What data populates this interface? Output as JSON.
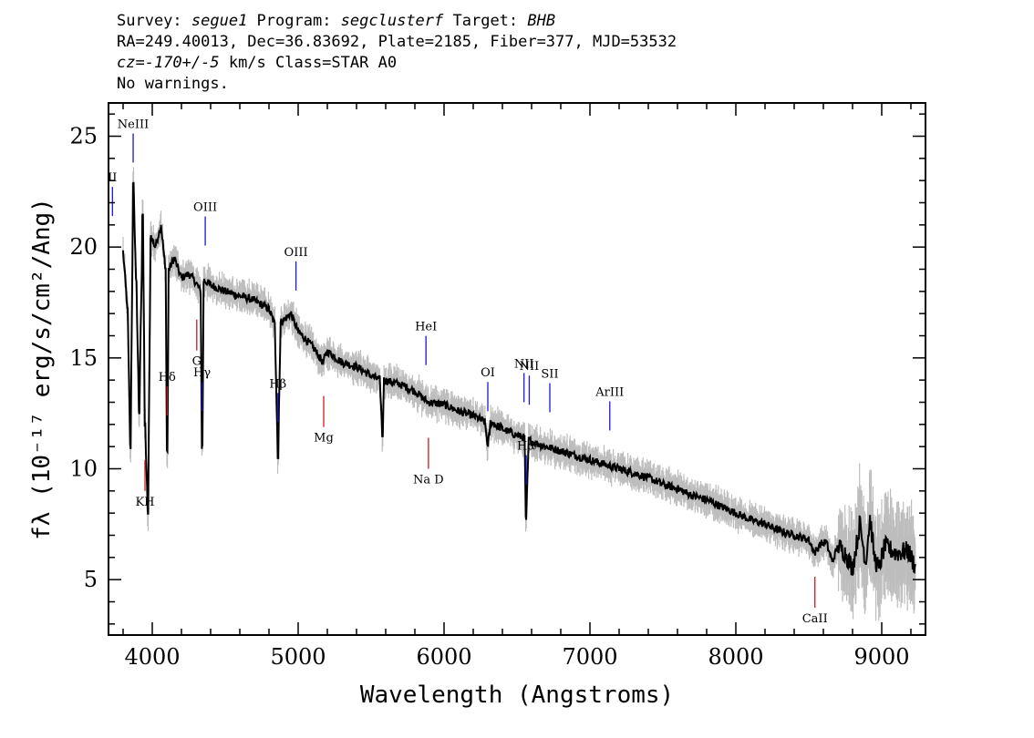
{
  "header": {
    "line1": {
      "survey_label": "Survey: ",
      "survey": "segue1",
      "program_label": " Program: ",
      "program": "segclusterf",
      "target_label": " Target: ",
      "target": "BHB"
    },
    "line2": "RA=249.40013, Dec=36.83692, Plate=2185, Fiber=377, MJD=53532",
    "line3": {
      "cz": "cz=-170+/-5",
      "rest": " km/s Class=STAR A0"
    },
    "line4": "No warnings."
  },
  "chart_data": {
    "type": "line",
    "xlabel": "Wavelength (Angstroms)",
    "ylabel": "fλ (10⁻¹⁷ erg/s/cm²/Ang)",
    "xlim": [
      3700,
      9300
    ],
    "ylim": [
      2.5,
      26.5
    ],
    "x_ticks": [
      4000,
      5000,
      6000,
      7000,
      8000,
      9000
    ],
    "y_ticks": [
      5,
      10,
      15,
      20,
      25
    ],
    "series": [
      {
        "color": "#000000",
        "x": [
          3800,
          3830,
          3850,
          3870,
          3890,
          3910,
          3935,
          3950,
          3970,
          3990,
          4020,
          4060,
          4090,
          4102,
          4115,
          4150,
          4200,
          4250,
          4300,
          4330,
          4341,
          4355,
          4400,
          4500,
          4600,
          4700,
          4800,
          4840,
          4861,
          4880,
          4950,
          5000,
          5100,
          5170,
          5200,
          5300,
          5400,
          5500,
          5560,
          5577,
          5590,
          5700,
          5800,
          5890,
          6000,
          6100,
          6200,
          6280,
          6300,
          6320,
          6400,
          6500,
          6550,
          6563,
          6580,
          6650,
          6700,
          6800,
          6900,
          7000,
          7100,
          7200,
          7300,
          7400,
          7500,
          7600,
          7700,
          7800,
          7900,
          8000,
          8100,
          8200,
          8300,
          8400,
          8500,
          8540,
          8580,
          8620,
          8660,
          8700,
          8750,
          8800,
          8850,
          8890,
          8920,
          8950,
          8980,
          9020,
          9100,
          9180,
          9230
        ],
        "y": [
          19.8,
          17.2,
          11.0,
          22.8,
          18.5,
          12.5,
          21.5,
          12.0,
          8.0,
          20.5,
          20.0,
          21.0,
          19.0,
          10.8,
          19.0,
          19.5,
          18.6,
          18.8,
          18.4,
          18.0,
          11.0,
          18.5,
          18.3,
          18.0,
          17.8,
          17.6,
          17.2,
          16.5,
          10.5,
          16.6,
          17.0,
          16.2,
          15.5,
          14.8,
          15.3,
          14.8,
          14.6,
          14.2,
          14.0,
          11.5,
          14.0,
          13.8,
          13.5,
          13.0,
          12.9,
          12.6,
          12.4,
          12.1,
          11.0,
          12.1,
          11.8,
          11.5,
          11.4,
          7.7,
          11.3,
          11.1,
          11.0,
          10.8,
          10.6,
          10.4,
          10.2,
          10.0,
          9.8,
          9.6,
          9.3,
          9.1,
          8.8,
          8.6,
          8.3,
          8.0,
          7.7,
          7.5,
          7.2,
          7.0,
          6.8,
          6.2,
          6.6,
          6.7,
          5.8,
          6.5,
          6.2,
          5.5,
          7.5,
          5.8,
          7.8,
          6.0,
          5.5,
          6.5,
          6.2,
          6.3,
          5.6
        ]
      }
    ],
    "lines": [
      {
        "label": "NeIII",
        "x": 3869,
        "color": "#1a1acc",
        "group": "top"
      },
      {
        "label": "II",
        "x": 3727,
        "color": "#1a1acc",
        "group": "top"
      },
      {
        "label": "Hδ",
        "x": 4102,
        "color": "#cc1a1a",
        "group": "top"
      },
      {
        "label": "Hγ",
        "x": 4341,
        "color": "#1a1acc",
        "group": "top"
      },
      {
        "label": "OIII",
        "x": 4363,
        "color": "#1a1acc",
        "group": "top"
      },
      {
        "label": "Hβ",
        "x": 4861,
        "color": "#1a1acc",
        "group": "top"
      },
      {
        "label": "OIII",
        "x": 4985,
        "color": "#1a1acc",
        "group": "top"
      },
      {
        "label": "HeI",
        "x": 5876,
        "color": "#1a1acc",
        "group": "top"
      },
      {
        "label": "OI",
        "x": 6300,
        "color": "#1a1acc",
        "group": "top"
      },
      {
        "label": "NII",
        "x": 6548,
        "color": "#1a1acc",
        "group": "top"
      },
      {
        "label": "Hα",
        "x": 6563,
        "color": "#1a1acc",
        "group": "top"
      },
      {
        "label": "NII",
        "x": 6584,
        "color": "#1a1acc",
        "group": "top"
      },
      {
        "label": "SII",
        "x": 6725,
        "color": "#1a1acc",
        "group": "top"
      },
      {
        "label": "ArIII",
        "x": 7136,
        "color": "#1a1acc",
        "group": "top"
      },
      {
        "label": "KH",
        "x": 3950,
        "color": "#cc1a1a",
        "group": "bottom"
      },
      {
        "label": "G",
        "x": 4305,
        "color": "#cc1a1a",
        "group": "bottom"
      },
      {
        "label": "Mg",
        "x": 5175,
        "color": "#cc1a1a",
        "group": "bottom"
      },
      {
        "label": "Na D",
        "x": 5893,
        "color": "#cc1a1a",
        "group": "bottom"
      },
      {
        "label": "CaII",
        "x": 8542,
        "color": "#cc1a1a",
        "group": "bottom"
      }
    ]
  }
}
